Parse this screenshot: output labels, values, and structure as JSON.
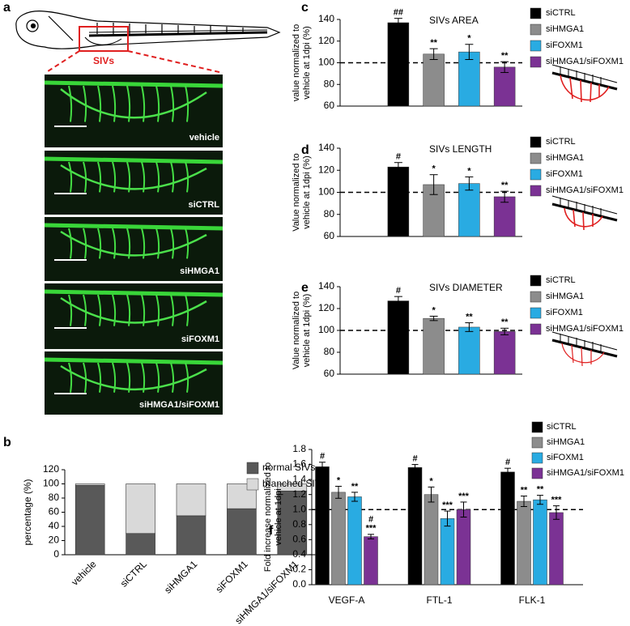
{
  "panel_a": {
    "letter": "a",
    "label": "SIVs",
    "images": [
      "vehicle",
      "siCTRL",
      "siHMGA1",
      "siFOXM1",
      "siHMGA1/siFOXM1"
    ]
  },
  "chart_data": [
    {
      "panel": "c",
      "type": "bar",
      "title": "SIVs AREA",
      "ylabel": [
        "value normalized to",
        "vehicle at 1dpi (%)"
      ],
      "categories": [
        "siCTRL",
        "siHMGA1",
        "siFOXM1",
        "siHMGA1/siFOXM1"
      ],
      "colors": [
        "#000000",
        "#8c8c8c",
        "#29abe2",
        "#7b3294"
      ],
      "values": [
        137,
        108,
        110,
        96
      ],
      "errors": [
        4,
        5,
        7,
        5
      ],
      "significance": [
        "##",
        "**",
        "*",
        "**"
      ],
      "ylim": [
        60,
        140
      ],
      "yticks": [
        60,
        80,
        100,
        120,
        140
      ],
      "reference_line": 100
    },
    {
      "panel": "d",
      "type": "bar",
      "title": "SIVs LENGTH",
      "ylabel": [
        "Value normalized to",
        "vehicle at 1dpi (%)"
      ],
      "categories": [
        "siCTRL",
        "siHMGA1",
        "siFOXM1",
        "siHMGA1/siFOXM1"
      ],
      "colors": [
        "#000000",
        "#8c8c8c",
        "#29abe2",
        "#7b3294"
      ],
      "values": [
        123,
        107,
        108,
        96
      ],
      "errors": [
        4,
        9,
        6,
        5
      ],
      "significance": [
        "#",
        "*",
        "*",
        "**"
      ],
      "ylim": [
        60,
        140
      ],
      "yticks": [
        60,
        80,
        100,
        120,
        140
      ],
      "reference_line": 100
    },
    {
      "panel": "e",
      "type": "bar",
      "title": "SIVs DIAMETER",
      "ylabel": [
        "Value normalized to",
        "vehicle at 1dpi (%)"
      ],
      "categories": [
        "siCTRL",
        "siHMGA1",
        "siFOXM1",
        "siHMGA1/siFOXM1"
      ],
      "colors": [
        "#000000",
        "#8c8c8c",
        "#29abe2",
        "#7b3294"
      ],
      "values": [
        127,
        111,
        103,
        99
      ],
      "errors": [
        4,
        2,
        4,
        3
      ],
      "significance": [
        "#",
        "*",
        "**",
        "**"
      ],
      "ylim": [
        60,
        140
      ],
      "yticks": [
        60,
        80,
        100,
        120,
        140
      ],
      "reference_line": 100
    },
    {
      "panel": "b",
      "type": "stacked-bar",
      "ylabel": "percentage (%)",
      "categories": [
        "vehicle",
        "siCTRL",
        "siHMGA1",
        "siFOXM1",
        "siHMGA1/siFOXM1"
      ],
      "series": [
        {
          "name": "normal SIVs",
          "color": "#595959",
          "values": [
            98,
            30,
            55,
            65,
            90
          ]
        },
        {
          "name": "branched SIVs",
          "color": "#d9d9d9",
          "values": [
            2,
            70,
            45,
            35,
            10
          ]
        }
      ],
      "ylim": [
        0,
        120
      ],
      "yticks": [
        0,
        20,
        40,
        60,
        80,
        100,
        120
      ]
    },
    {
      "panel": "f",
      "type": "grouped-bar",
      "ylabel": [
        "Fold increase normalized to",
        "vehicle at 1dpi"
      ],
      "categories": [
        "VEGF-A",
        "FTL-1",
        "FLK-1"
      ],
      "series": [
        {
          "name": "siCTRL",
          "color": "#000000",
          "values": [
            1.57,
            1.56,
            1.5
          ],
          "errors": [
            0.06,
            0.04,
            0.05
          ],
          "significance": [
            "#",
            "#",
            "#"
          ]
        },
        {
          "name": "siHMGA1",
          "color": "#8c8c8c",
          "values": [
            1.23,
            1.2,
            1.11
          ],
          "errors": [
            0.08,
            0.1,
            0.07
          ],
          "significance": [
            "*",
            "*",
            "**"
          ]
        },
        {
          "name": "siFOXM1",
          "color": "#29abe2",
          "values": [
            1.17,
            0.88,
            1.13
          ],
          "errors": [
            0.06,
            0.1,
            0.06
          ],
          "significance": [
            "**",
            "***",
            "**"
          ]
        },
        {
          "name": "siHMGA1/siFOXM1",
          "color": "#7b3294",
          "values": [
            0.64,
            1.0,
            0.96
          ],
          "errors": [
            0.03,
            0.1,
            0.09
          ],
          "significance": [
            "***",
            "***",
            "***"
          ],
          "significance_top": [
            "#",
            null,
            null
          ]
        }
      ],
      "ylim": [
        0,
        1.8
      ],
      "yticks": [
        {
          "value": 0,
          "label": "0.0"
        },
        0.2,
        0.4,
        0.6,
        0.8,
        {
          "value": 1,
          "label": "1.0"
        },
        1.2,
        1.4,
        1.6,
        1.8
      ],
      "reference_line": 1
    }
  ]
}
